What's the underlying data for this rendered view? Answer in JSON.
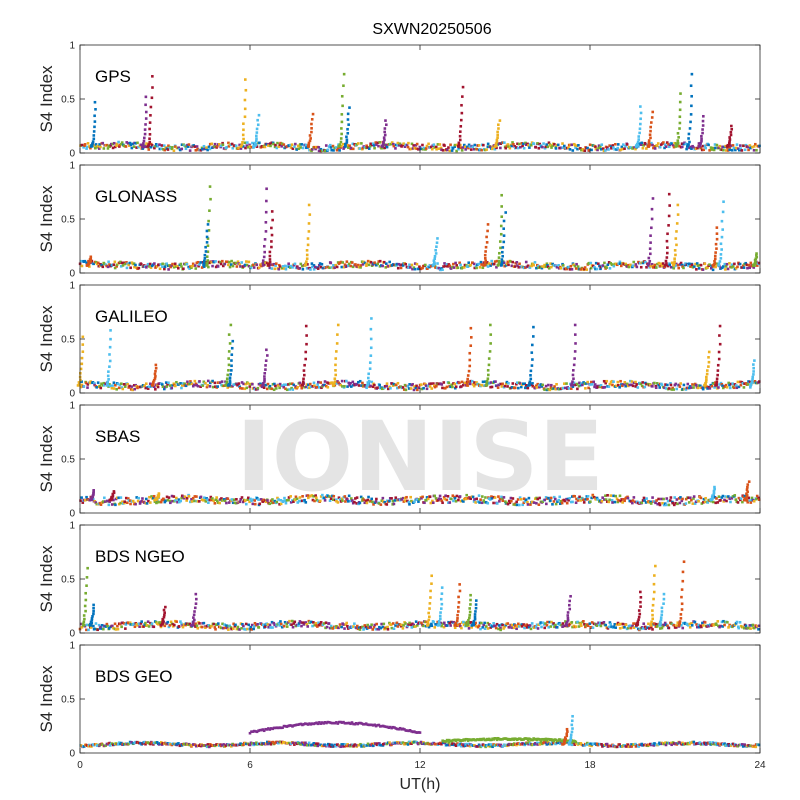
{
  "chart_data": {
    "type": "scatter",
    "title": "SXWN20250506",
    "xlabel": "UT(h)",
    "ylabel": "S4 Index",
    "xlim": [
      0,
      24
    ],
    "ylim": [
      0,
      1
    ],
    "xticks": [
      "0",
      "6",
      "12",
      "18",
      "24"
    ],
    "yticks": [
      "0",
      "0.5",
      "1"
    ],
    "grid": false,
    "watermark": "IONISE",
    "colors": [
      "#0072BD",
      "#D95319",
      "#EDB120",
      "#7E2F8E",
      "#77AC30",
      "#4DBEEE",
      "#A2142F"
    ],
    "panels": [
      {
        "name": "GPS",
        "baseline": 0.06,
        "noise": 0.03,
        "spikes": [
          [
            0.55,
            0.47
          ],
          [
            2.35,
            0.52
          ],
          [
            2.55,
            0.71
          ],
          [
            5.85,
            0.68
          ],
          [
            6.3,
            0.35
          ],
          [
            8.2,
            0.36
          ],
          [
            9.3,
            0.73
          ],
          [
            9.5,
            0.42
          ],
          [
            10.8,
            0.3
          ],
          [
            13.5,
            0.61
          ],
          [
            14.8,
            0.3
          ],
          [
            19.8,
            0.43
          ],
          [
            20.2,
            0.38
          ],
          [
            21.2,
            0.55
          ],
          [
            21.6,
            0.73
          ],
          [
            22.0,
            0.34
          ],
          [
            23.0,
            0.25
          ]
        ]
      },
      {
        "name": "GLONASS",
        "baseline": 0.07,
        "noise": 0.03,
        "spikes": [
          [
            0.4,
            0.15
          ],
          [
            4.6,
            0.8
          ],
          [
            4.5,
            0.45
          ],
          [
            6.6,
            0.78
          ],
          [
            6.8,
            0.57
          ],
          [
            8.1,
            0.63
          ],
          [
            12.6,
            0.32
          ],
          [
            14.4,
            0.45
          ],
          [
            14.9,
            0.72
          ],
          [
            15.0,
            0.56
          ],
          [
            20.2,
            0.69
          ],
          [
            20.8,
            0.73
          ],
          [
            21.1,
            0.63
          ],
          [
            22.7,
            0.66
          ],
          [
            22.5,
            0.42
          ],
          [
            23.9,
            0.18
          ]
        ]
      },
      {
        "name": "GALILEO",
        "baseline": 0.07,
        "noise": 0.03,
        "spikes": [
          [
            0.1,
            0.52
          ],
          [
            1.1,
            0.58
          ],
          [
            2.7,
            0.26
          ],
          [
            5.3,
            0.63
          ],
          [
            5.4,
            0.48
          ],
          [
            6.6,
            0.4
          ],
          [
            8.0,
            0.62
          ],
          [
            9.1,
            0.63
          ],
          [
            10.3,
            0.69
          ],
          [
            13.8,
            0.6
          ],
          [
            14.5,
            0.63
          ],
          [
            16.0,
            0.61
          ],
          [
            17.5,
            0.63
          ],
          [
            22.6,
            0.62
          ],
          [
            22.2,
            0.38
          ],
          [
            23.8,
            0.3
          ]
        ]
      },
      {
        "name": "SBAS",
        "baseline": 0.12,
        "noise": 0.035,
        "spikes": [
          [
            0.5,
            0.21
          ],
          [
            1.2,
            0.2
          ],
          [
            2.8,
            0.18
          ],
          [
            22.4,
            0.24
          ],
          [
            23.6,
            0.29
          ]
        ]
      },
      {
        "name": "BDS NGEO",
        "baseline": 0.07,
        "noise": 0.03,
        "spikes": [
          [
            0.25,
            0.6
          ],
          [
            0.5,
            0.26
          ],
          [
            4.1,
            0.36
          ],
          [
            3.0,
            0.24
          ],
          [
            12.4,
            0.53
          ],
          [
            12.8,
            0.42
          ],
          [
            13.4,
            0.45
          ],
          [
            13.8,
            0.35
          ],
          [
            14.0,
            0.3
          ],
          [
            17.3,
            0.34
          ],
          [
            19.8,
            0.38
          ],
          [
            20.3,
            0.62
          ],
          [
            20.6,
            0.36
          ],
          [
            21.3,
            0.66
          ]
        ]
      },
      {
        "name": "BDS GEO",
        "baseline": 0.08,
        "noise": 0.012,
        "spikes": [
          [
            17.4,
            0.34
          ],
          [
            17.2,
            0.22
          ]
        ],
        "arcs": [
          {
            "x0": 6.0,
            "x1": 12.0,
            "peak": 0.28,
            "edge": 0.19,
            "color": "#7E2F8E"
          },
          {
            "x0": 12.8,
            "x1": 17.5,
            "peak": 0.13,
            "edge": 0.11,
            "color": "#77AC30"
          }
        ]
      }
    ]
  }
}
